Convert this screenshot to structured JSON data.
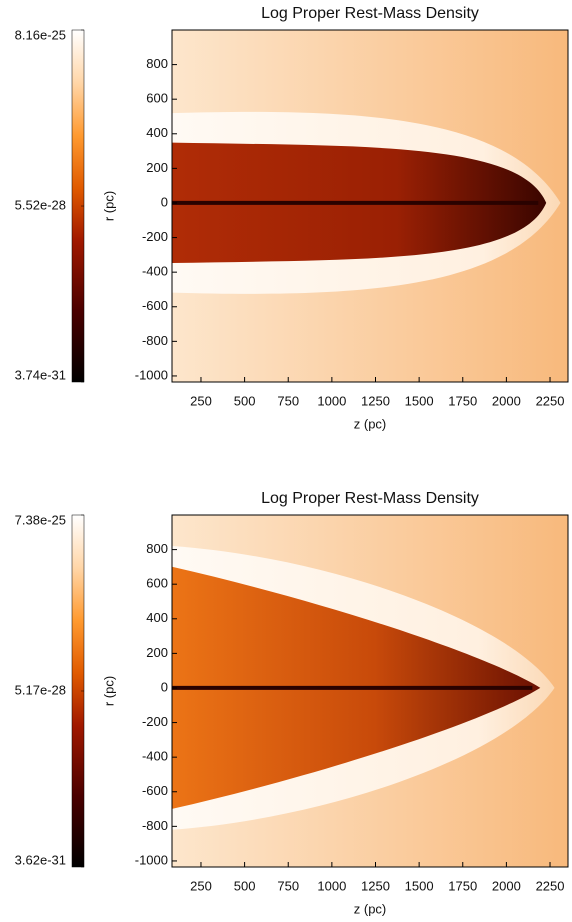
{
  "chart_data": [
    {
      "type": "image",
      "title": "Log Proper Rest-Mass Density",
      "x_label": "z (pc)",
      "y_label": "r (pc)",
      "xlim": [
        84,
        2353
      ],
      "xticks": [
        250,
        500,
        750,
        1000,
        1250,
        1500,
        1750,
        2000,
        2250
      ],
      "ylim": [
        -1035,
        1000
      ],
      "yticks": [
        800,
        600,
        400,
        200,
        0,
        -200,
        -400,
        -600,
        -800,
        -1000
      ],
      "colorbar_lim": [
        3.74e-31,
        8.16e-25
      ],
      "colorbar_ticks": [
        8.16e-25,
        5.52e-28,
        3.74e-31
      ],
      "colorbar_log": true
    },
    {
      "type": "image",
      "title": "Log Proper Rest-Mass Density",
      "x_label": "z (pc)",
      "y_label": "r (pc)",
      "xlim": [
        84,
        2353
      ],
      "xticks": [
        250,
        500,
        750,
        1000,
        1250,
        1500,
        1750,
        2000,
        2250
      ],
      "ylim": [
        -1035,
        1000
      ],
      "yticks": [
        800,
        600,
        400,
        200,
        0,
        -200,
        -400,
        -600,
        -800,
        -1000
      ],
      "colorbar_lim": [
        3.62e-31,
        7.38e-25
      ],
      "colorbar_ticks": [
        7.38e-25,
        5.17e-28,
        3.62e-31
      ],
      "colorbar_log": true
    }
  ]
}
